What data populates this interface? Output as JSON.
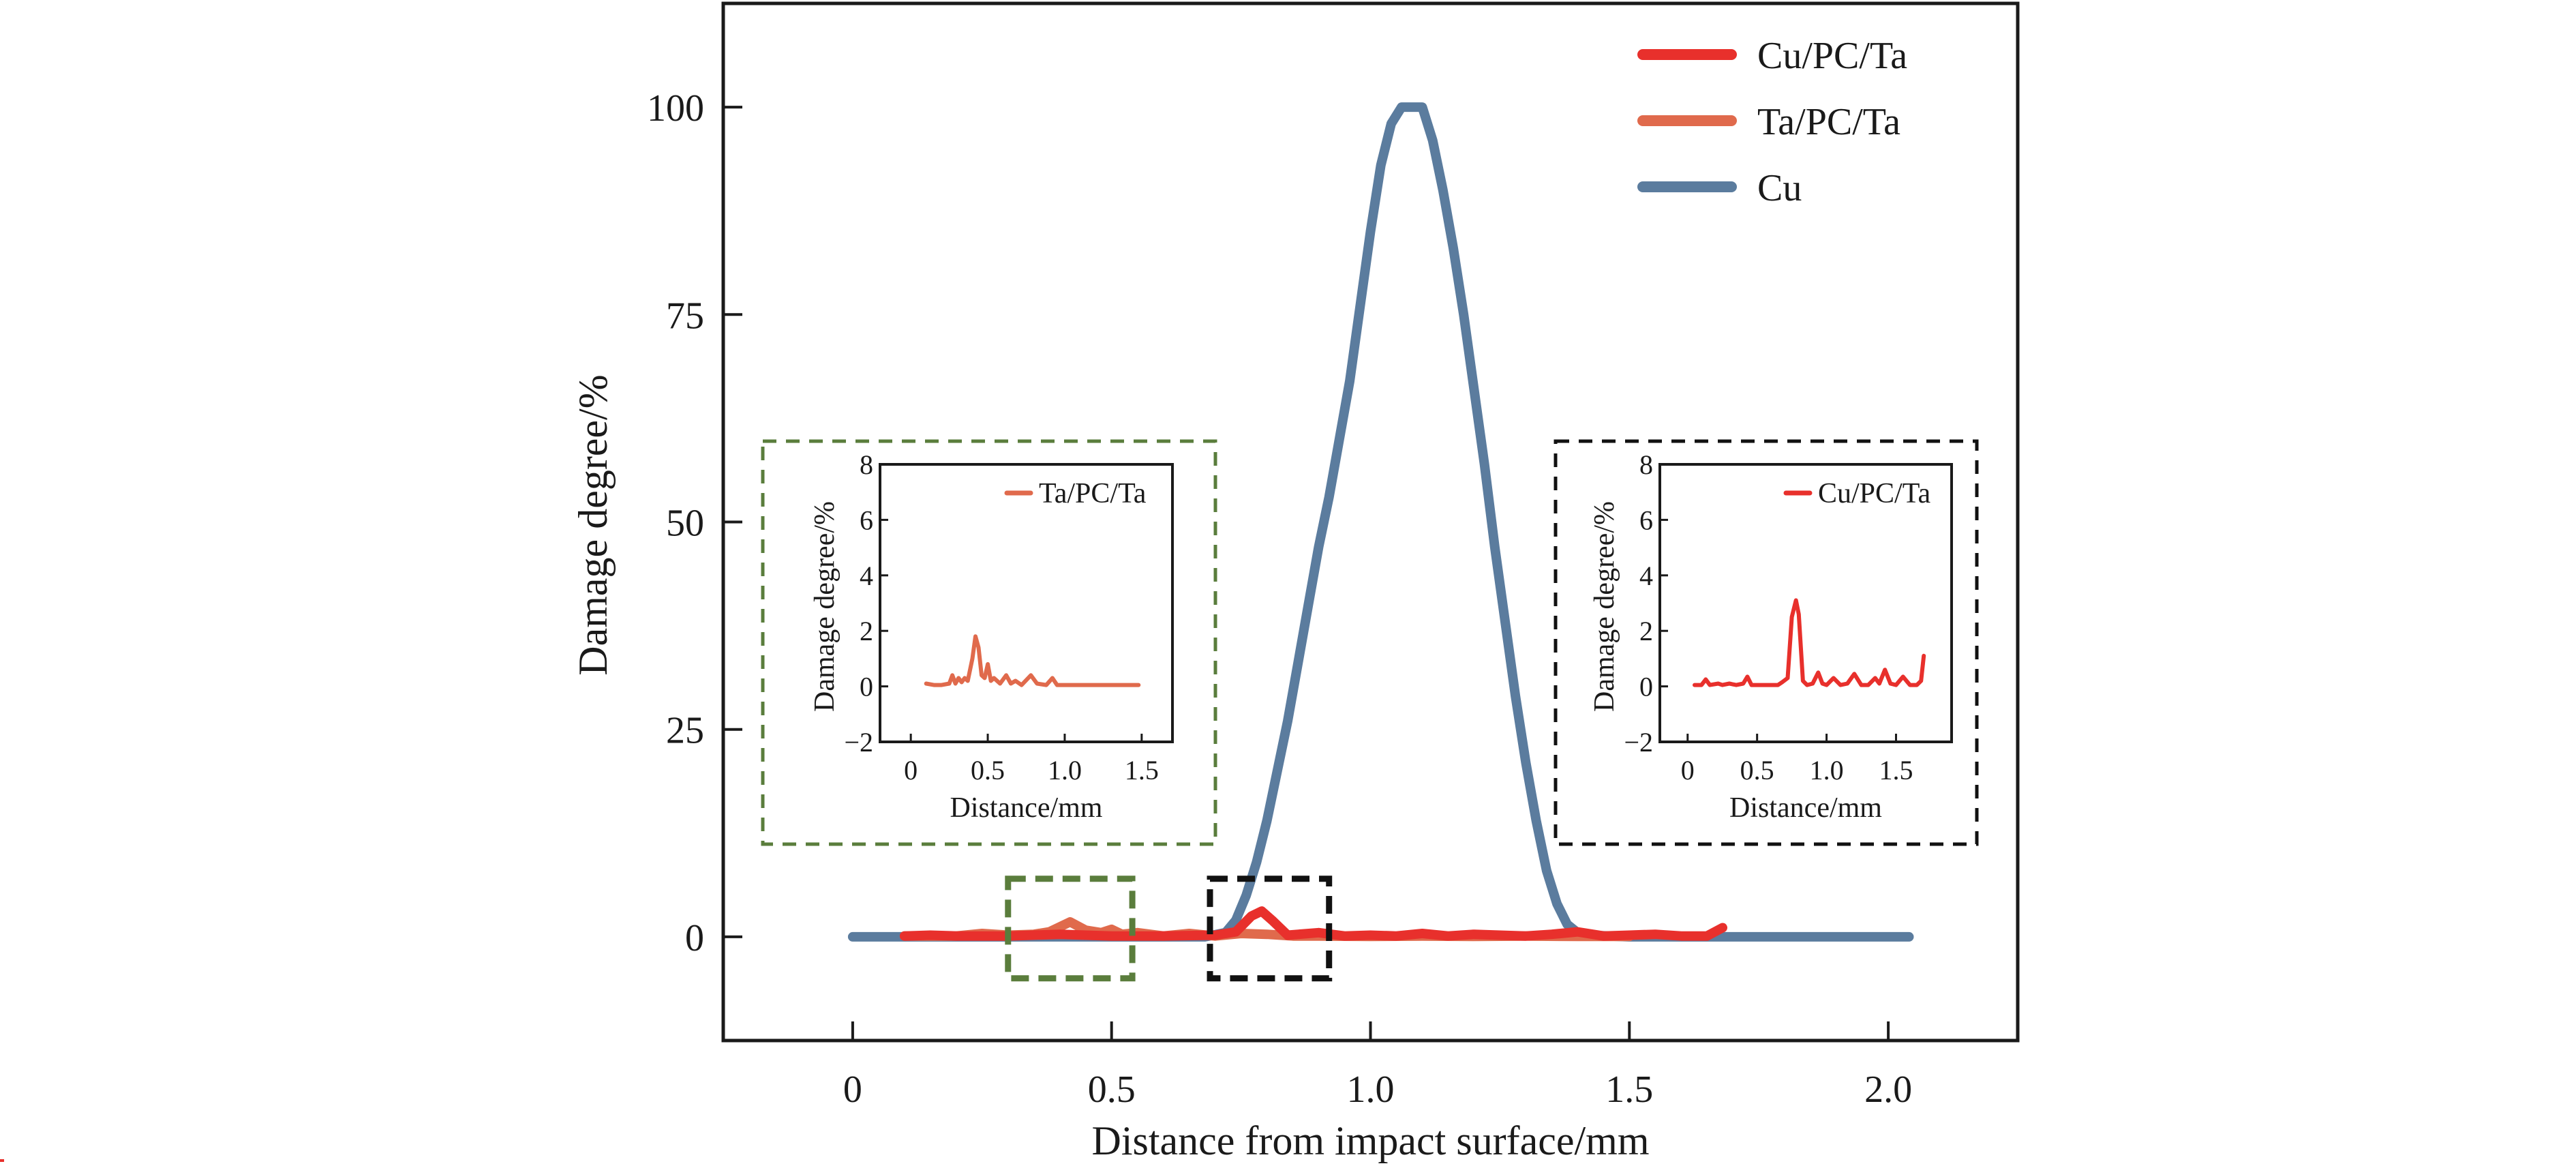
{
  "chart_data": {
    "type": "line",
    "title": "",
    "xlabel": "Distance from impact surface/mm",
    "ylabel": "Damage degree/%",
    "xlim": [
      -0.25,
      2.25
    ],
    "ylim": [
      -12.5,
      112.5
    ],
    "xticks": [
      0,
      0.5,
      1.0,
      1.5,
      2.0
    ],
    "xtick_labels": [
      "0",
      "0.5",
      "1.0",
      "1.5",
      "2.0"
    ],
    "yticks": [
      0,
      25,
      50,
      75,
      100
    ],
    "ytick_labels": [
      "0",
      "25",
      "50",
      "75",
      "100"
    ],
    "grid": false,
    "legend": {
      "placement": "top-right",
      "entries": [
        "Cu/PC/Ta",
        "Ta/PC/Ta",
        "Cu"
      ]
    },
    "series": [
      {
        "name": "Cu",
        "color": "#5b7c9e",
        "x": [
          0.0,
          0.1,
          0.2,
          0.3,
          0.4,
          0.5,
          0.6,
          0.68,
          0.72,
          0.74,
          0.76,
          0.78,
          0.8,
          0.82,
          0.84,
          0.86,
          0.88,
          0.9,
          0.92,
          0.94,
          0.96,
          0.98,
          1.0,
          1.02,
          1.04,
          1.06,
          1.08,
          1.1,
          1.12,
          1.14,
          1.16,
          1.18,
          1.2,
          1.22,
          1.24,
          1.26,
          1.28,
          1.3,
          1.32,
          1.34,
          1.36,
          1.38,
          1.4,
          1.42,
          1.5,
          1.6,
          1.7,
          1.8,
          1.9,
          2.0,
          2.04
        ],
        "y": [
          0,
          0,
          0,
          0,
          0,
          0,
          0,
          0,
          0.5,
          2,
          5,
          9,
          14,
          20,
          26,
          33,
          40,
          47,
          53,
          60,
          67,
          76,
          85,
          93,
          98,
          100,
          100,
          100,
          96,
          90,
          83,
          75,
          66,
          57,
          47,
          38,
          29,
          21,
          14,
          8,
          4,
          1.5,
          0.5,
          0.2,
          0,
          0,
          0,
          0,
          0,
          0,
          0
        ]
      },
      {
        "name": "Ta/PC/Ta",
        "color": "#e06a4c",
        "x": [
          0.1,
          0.15,
          0.2,
          0.25,
          0.3,
          0.35,
          0.38,
          0.42,
          0.45,
          0.48,
          0.5,
          0.52,
          0.55,
          0.6,
          0.65,
          0.7,
          0.75,
          0.8,
          0.85,
          0.9,
          1.0,
          1.1,
          1.2,
          1.3,
          1.4,
          1.5
        ],
        "y": [
          0.1,
          0.1,
          0.1,
          0.4,
          0.2,
          0.3,
          0.6,
          1.8,
          0.8,
          0.5,
          0.9,
          0.3,
          0.5,
          0.1,
          0.4,
          0.1,
          0.4,
          0.3,
          0.1,
          0.1,
          0.05,
          0.1,
          0.05,
          0.1,
          0.05,
          0.05
        ]
      },
      {
        "name": "Cu/PC/Ta",
        "color": "#e8302c",
        "x": [
          0.1,
          0.15,
          0.2,
          0.3,
          0.4,
          0.5,
          0.6,
          0.7,
          0.74,
          0.77,
          0.79,
          0.81,
          0.84,
          0.9,
          0.95,
          1.0,
          1.05,
          1.1,
          1.15,
          1.2,
          1.3,
          1.35,
          1.4,
          1.45,
          1.5,
          1.55,
          1.6,
          1.65,
          1.68
        ],
        "y": [
          0.1,
          0.2,
          0.1,
          0.1,
          0.3,
          0.1,
          0.1,
          0.2,
          0.6,
          2.5,
          3.1,
          2.0,
          0.2,
          0.5,
          0.1,
          0.2,
          0.1,
          0.4,
          0.1,
          0.3,
          0.1,
          0.3,
          0.6,
          0.1,
          0.2,
          0.3,
          0.1,
          0.1,
          1.1
        ]
      }
    ],
    "annotations": [
      {
        "type": "dashed-box",
        "color": "#5a7d3c",
        "x_range": [
          0.3,
          0.54
        ],
        "y_range": [
          -5,
          7
        ],
        "zoom_of": "Ta/PC/Ta"
      },
      {
        "type": "dashed-box",
        "color": "#111111",
        "x_range": [
          0.69,
          0.92
        ],
        "y_range": [
          -5,
          7
        ],
        "zoom_of": "Cu/PC/Ta"
      }
    ],
    "insets": [
      {
        "name": "Ta/PC/Ta inset",
        "frame_color": "#5a7d3c",
        "xlabel": "Distance/mm",
        "ylabel": "Damage degree/%",
        "xlim": [
          -0.2,
          1.7
        ],
        "ylim": [
          -2,
          8
        ],
        "xticks": [
          0,
          0.5,
          1.0,
          1.5
        ],
        "xtick_labels": [
          "0",
          "0.5",
          "1.0",
          "1.5"
        ],
        "yticks": [
          -2,
          0,
          2,
          4,
          6,
          8
        ],
        "ytick_labels": [
          "−2",
          "0",
          "2",
          "4",
          "6",
          "8"
        ],
        "legend": [
          "Ta/PC/Ta"
        ],
        "series": [
          {
            "name": "Ta/PC/Ta",
            "color": "#e06a4c",
            "x": [
              0.1,
              0.15,
              0.2,
              0.25,
              0.27,
              0.29,
              0.31,
              0.33,
              0.35,
              0.37,
              0.4,
              0.42,
              0.44,
              0.46,
              0.48,
              0.5,
              0.52,
              0.54,
              0.58,
              0.62,
              0.65,
              0.68,
              0.72,
              0.78,
              0.82,
              0.88,
              0.92,
              0.95,
              1.0,
              1.1,
              1.2,
              1.3,
              1.4,
              1.48
            ],
            "y": [
              0.1,
              0.05,
              0.05,
              0.1,
              0.4,
              0.1,
              0.3,
              0.15,
              0.3,
              0.2,
              1.0,
              1.8,
              1.4,
              0.4,
              0.3,
              0.8,
              0.2,
              0.3,
              0.1,
              0.4,
              0.1,
              0.2,
              0.05,
              0.4,
              0.1,
              0.05,
              0.3,
              0.05,
              0.05,
              0.05,
              0.05,
              0.05,
              0.05,
              0.05
            ]
          }
        ]
      },
      {
        "name": "Cu/PC/Ta inset",
        "frame_color": "#111111",
        "xlabel": "Distance/mm",
        "ylabel": "Damage degree/%",
        "xlim": [
          -0.2,
          1.9
        ],
        "ylim": [
          -2,
          8
        ],
        "xticks": [
          0,
          0.5,
          1.0,
          1.5
        ],
        "xtick_labels": [
          "0",
          "0.5",
          "1.0",
          "1.5"
        ],
        "yticks": [
          -2,
          0,
          2,
          4,
          6,
          8
        ],
        "ytick_labels": [
          "−2",
          "0",
          "2",
          "4",
          "6",
          "8"
        ],
        "legend": [
          "Cu/PC/Ta"
        ],
        "series": [
          {
            "name": "Cu/PC/Ta",
            "color": "#e8302c",
            "x": [
              0.05,
              0.1,
              0.13,
              0.16,
              0.22,
              0.25,
              0.3,
              0.35,
              0.4,
              0.43,
              0.46,
              0.55,
              0.65,
              0.68,
              0.72,
              0.75,
              0.78,
              0.8,
              0.83,
              0.86,
              0.9,
              0.94,
              0.97,
              1.0,
              1.05,
              1.1,
              1.15,
              1.2,
              1.25,
              1.3,
              1.35,
              1.38,
              1.42,
              1.46,
              1.5,
              1.55,
              1.6,
              1.65,
              1.68,
              1.7
            ],
            "y": [
              0.05,
              0.05,
              0.25,
              0.05,
              0.1,
              0.05,
              0.1,
              0.05,
              0.1,
              0.35,
              0.05,
              0.05,
              0.05,
              0.15,
              0.3,
              2.5,
              3.1,
              2.6,
              0.2,
              0.05,
              0.1,
              0.5,
              0.1,
              0.05,
              0.3,
              0.05,
              0.1,
              0.45,
              0.05,
              0.05,
              0.3,
              0.1,
              0.6,
              0.1,
              0.05,
              0.35,
              0.05,
              0.05,
              0.2,
              1.1
            ]
          }
        ]
      }
    ]
  }
}
